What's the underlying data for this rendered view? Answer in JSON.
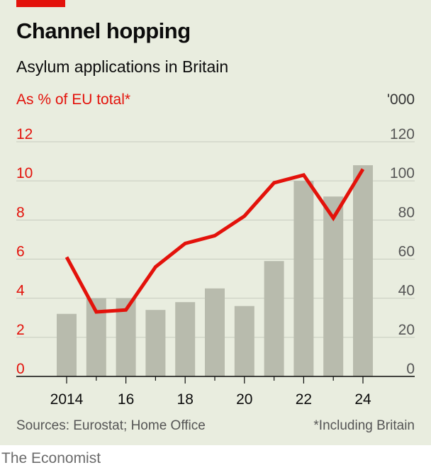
{
  "header": {
    "title": "Channel hopping",
    "subtitle": "Asylum applications in Britain"
  },
  "footer": {
    "source": "Sources: Eurostat; Home Office",
    "footnote": "*Including Britain",
    "brand": "The Economist"
  },
  "colors": {
    "background": "#e9eddf",
    "accent_red": "#e3120b",
    "bar_gray": "#b8bbad"
  },
  "chart_data": {
    "type": "bar+line",
    "title": "Channel hopping",
    "subtitle": "Asylum applications in Britain",
    "left_axis_label": "As % of EU total*",
    "right_axis_label": "'000",
    "years": [
      2014,
      2015,
      2016,
      2017,
      2018,
      2019,
      2020,
      2021,
      2022,
      2023,
      2024
    ],
    "x_tick_labels": [
      "2014",
      "16",
      "18",
      "20",
      "22",
      "24"
    ],
    "x_tick_years": [
      2014,
      2016,
      2018,
      2020,
      2022,
      2024
    ],
    "left_ticks": [
      "0",
      "2",
      "4",
      "6",
      "8",
      "10",
      "12"
    ],
    "right_ticks": [
      "0",
      "20",
      "40",
      "60",
      "80",
      "100",
      "120"
    ],
    "left_ylim": [
      0,
      12
    ],
    "right_ylim": [
      0,
      120
    ],
    "series": [
      {
        "name": "Asylum applications ('000)",
        "axis": "right",
        "type": "bar",
        "values": [
          32,
          40,
          40,
          34,
          38,
          45,
          36,
          59,
          100,
          92,
          108
        ]
      },
      {
        "name": "As % of EU total*",
        "axis": "left",
        "type": "line",
        "values": [
          6.1,
          3.3,
          3.4,
          5.6,
          6.8,
          7.2,
          8.2,
          9.9,
          10.3,
          8.1,
          10.6
        ]
      }
    ]
  }
}
